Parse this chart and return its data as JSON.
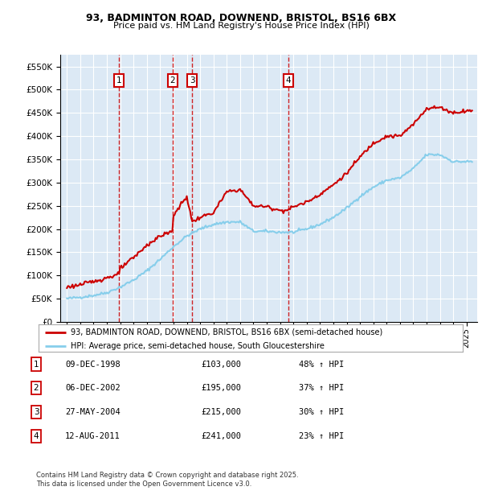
{
  "title1": "93, BADMINTON ROAD, DOWNEND, BRISTOL, BS16 6BX",
  "title2": "Price paid vs. HM Land Registry's House Price Index (HPI)",
  "transactions": [
    {
      "num": 1,
      "date": "09-DEC-1998",
      "price": 103000,
      "label": "48% ↑ HPI",
      "year": 1998.92
    },
    {
      "num": 2,
      "date": "06-DEC-2002",
      "price": 195000,
      "label": "37% ↑ HPI",
      "year": 2002.92
    },
    {
      "num": 3,
      "date": "27-MAY-2004",
      "price": 215000,
      "label": "30% ↑ HPI",
      "year": 2004.41
    },
    {
      "num": 4,
      "date": "12-AUG-2011",
      "price": 241000,
      "label": "23% ↑ HPI",
      "year": 2011.62
    }
  ],
  "legend_property": "93, BADMINTON ROAD, DOWNEND, BRISTOL, BS16 6BX (semi-detached house)",
  "legend_hpi": "HPI: Average price, semi-detached house, South Gloucestershire",
  "footer1": "Contains HM Land Registry data © Crown copyright and database right 2025.",
  "footer2": "This data is licensed under the Open Government Licence v3.0.",
  "property_color": "#cc0000",
  "hpi_color": "#87CEEB",
  "background_color": "#dce9f5",
  "ylim": [
    0,
    575000
  ],
  "yticks": [
    0,
    50000,
    100000,
    150000,
    200000,
    250000,
    300000,
    350000,
    400000,
    450000,
    500000,
    550000
  ],
  "xlim_min": 1994.5,
  "xlim_max": 2025.8,
  "marker_y": 520000
}
